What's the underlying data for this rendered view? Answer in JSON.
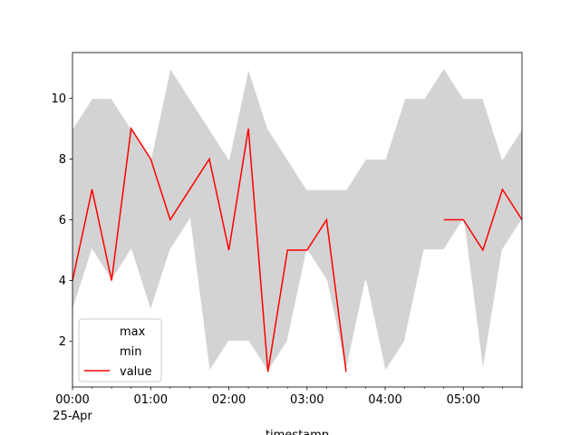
{
  "chart_data": {
    "type": "line_band",
    "x": [
      "00:00",
      "00:15",
      "00:30",
      "00:45",
      "01:00",
      "01:15",
      "01:30",
      "01:45",
      "02:00",
      "02:15",
      "02:30",
      "02:45",
      "03:00",
      "03:15",
      "03:30",
      "03:45",
      "04:00",
      "04:15",
      "04:30",
      "04:45",
      "05:00",
      "05:15",
      "05:30",
      "05:45"
    ],
    "x_date_label": "25-Apr",
    "xlabel": "timestamp",
    "series": [
      {
        "name": "max",
        "color": "#ffffff",
        "values": [
          9,
          10,
          10,
          9,
          8,
          11,
          10,
          9,
          8,
          11,
          9,
          8,
          7,
          7,
          7,
          8,
          8,
          10,
          10,
          11,
          10,
          10,
          8,
          9
        ]
      },
      {
        "name": "min",
        "color": "#ffffff",
        "values": [
          3,
          5,
          4,
          5,
          3,
          5,
          6,
          1,
          2,
          2,
          1,
          2,
          5,
          4,
          1,
          4,
          1,
          2,
          5,
          5,
          6,
          1,
          5,
          6
        ]
      },
      {
        "name": "value",
        "color": "#ff0000",
        "values": [
          4,
          7,
          4,
          9,
          8,
          6,
          7,
          8,
          5,
          9,
          1,
          5,
          5,
          6,
          1,
          null,
          null,
          null,
          null,
          6,
          6,
          5,
          7,
          6
        ]
      }
    ],
    "band_color": "#d3d3d3",
    "xlim": [
      "00:00",
      "05:45"
    ],
    "xticks": [
      "00:00",
      "01:00",
      "02:00",
      "03:00",
      "04:00",
      "05:00"
    ],
    "ylim": [
      0.5,
      11.5
    ],
    "yticks": [
      2,
      4,
      6,
      8,
      10
    ],
    "legend": "lower left"
  }
}
